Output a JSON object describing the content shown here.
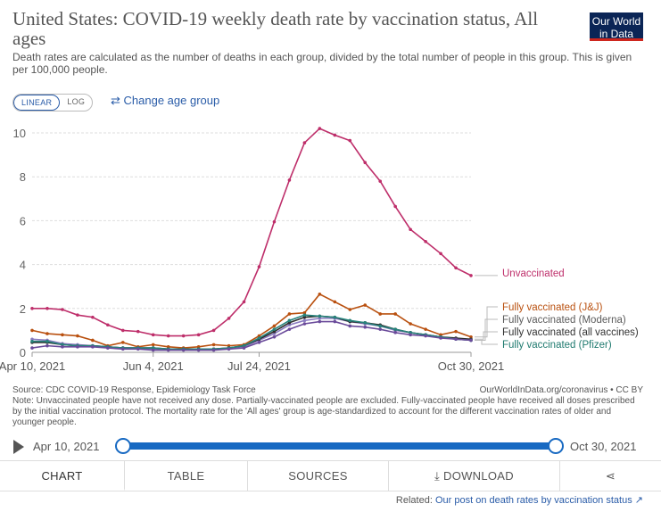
{
  "header": {
    "title": "United States: COVID-19 weekly death rate by vaccination status, All ages",
    "subtitle": "Death rates are calculated as the number of deaths in each group, divided by the total number of people in this group. This is given per 100,000 people.",
    "logo_line1": "Our World",
    "logo_line2": "in Data"
  },
  "controls": {
    "linear_label": "LINEAR",
    "log_label": "LOG",
    "age_icon": "swap-arrows-icon",
    "age_link": "Change age group"
  },
  "chart_data": {
    "type": "line",
    "title": "United States: COVID-19 weekly death rate by vaccination status, All ages",
    "ylabel": "",
    "ylim": [
      0,
      10
    ],
    "yticks": [
      0,
      2,
      4,
      6,
      8,
      10
    ],
    "xticks": [
      {
        "week": 0,
        "label": "Apr 10, 2021"
      },
      {
        "week": 8,
        "label": "Jun 4, 2021"
      },
      {
        "week": 15,
        "label": "Jul 24, 2021"
      },
      {
        "week": 29,
        "label": "Oct 30, 2021"
      }
    ],
    "x_weeks": [
      0,
      1,
      2,
      3,
      4,
      5,
      6,
      7,
      8,
      9,
      10,
      11,
      12,
      13,
      14,
      15,
      16,
      17,
      18,
      19,
      20,
      21,
      22,
      23,
      24,
      25,
      26,
      27,
      28,
      29
    ],
    "series": [
      {
        "name": "Unvaccinated",
        "color": "#be2e6a",
        "values": [
          2.0,
          2.0,
          1.95,
          1.7,
          1.6,
          1.25,
          1.0,
          0.95,
          0.8,
          0.75,
          0.75,
          0.8,
          1.0,
          1.55,
          2.3,
          3.9,
          5.95,
          7.85,
          9.55,
          10.2,
          9.9,
          9.65,
          8.65,
          7.8,
          6.65,
          5.6,
          5.05,
          4.5,
          3.85,
          3.5
        ]
      },
      {
        "name": "Fully vaccinated (J&J)",
        "color": "#b9500f",
        "values": [
          1.0,
          0.85,
          0.8,
          0.75,
          0.55,
          0.3,
          0.45,
          0.25,
          0.35,
          0.25,
          0.2,
          0.25,
          0.35,
          0.3,
          0.35,
          0.75,
          1.2,
          1.75,
          1.8,
          2.65,
          2.3,
          1.95,
          2.15,
          1.75,
          1.75,
          1.3,
          1.05,
          0.8,
          0.95,
          0.7
        ]
      },
      {
        "name": "Fully vaccinated (Moderna)",
        "color": "#8b7cc1",
        "values": [
          0.6,
          0.55,
          0.4,
          0.35,
          0.3,
          0.25,
          0.2,
          0.2,
          0.15,
          0.15,
          0.12,
          0.15,
          0.15,
          0.15,
          0.25,
          0.55,
          0.85,
          1.25,
          1.45,
          1.55,
          1.55,
          1.4,
          1.3,
          1.2,
          1.0,
          0.9,
          0.8,
          0.7,
          0.6,
          0.55
        ]
      },
      {
        "name": "Fully vaccinated (all vaccines)",
        "color": "#2d2d2d",
        "values": [
          0.45,
          0.45,
          0.35,
          0.3,
          0.3,
          0.25,
          0.2,
          0.2,
          0.2,
          0.15,
          0.15,
          0.15,
          0.15,
          0.2,
          0.3,
          0.6,
          0.95,
          1.35,
          1.6,
          1.65,
          1.6,
          1.4,
          1.35,
          1.25,
          1.05,
          0.9,
          0.8,
          0.7,
          0.65,
          0.6
        ]
      },
      {
        "name": "Fully vaccinated (Pfizer)",
        "color": "#27827a",
        "values": [
          0.5,
          0.5,
          0.35,
          0.3,
          0.3,
          0.25,
          0.2,
          0.2,
          0.2,
          0.15,
          0.15,
          0.15,
          0.15,
          0.2,
          0.3,
          0.65,
          1.05,
          1.45,
          1.7,
          1.65,
          1.6,
          1.45,
          1.35,
          1.2,
          1.05,
          0.9,
          0.8,
          0.7,
          0.6,
          0.55
        ]
      },
      {
        "name": "Fully vaccinated (all vaccines) purple line",
        "color": "#6a4a9a",
        "legend": false,
        "values": [
          0.2,
          0.3,
          0.25,
          0.25,
          0.25,
          0.2,
          0.15,
          0.15,
          0.1,
          0.1,
          0.1,
          0.1,
          0.1,
          0.15,
          0.2,
          0.45,
          0.7,
          1.05,
          1.3,
          1.4,
          1.4,
          1.2,
          1.15,
          1.05,
          0.9,
          0.8,
          0.75,
          0.65,
          0.6,
          0.55
        ]
      }
    ],
    "legend_labels": [
      {
        "name": "Unvaccinated",
        "color": "#be2e6a"
      },
      {
        "name": "Fully vaccinated (J&J)",
        "color": "#b9500f"
      },
      {
        "name": "Fully vaccinated (Moderna)",
        "color": "#5b5b5b"
      },
      {
        "name": "Fully vaccinated (all vaccines)",
        "color": "#333333"
      },
      {
        "name": "Fully vaccinated (Pfizer)",
        "color": "#1f7a6f"
      }
    ]
  },
  "footer": {
    "source": "Source: CDC COVID-19 Response, Epidemiology Task Force",
    "reference": "OurWorldInData.org/coronavirus • CC BY",
    "note": "Note: Unvaccinated people have not received any dose. Partially-vaccinated people are excluded. Fully-vaccinated people have received all doses prescribed by the initial vaccination protocol. The mortality rate for the 'All ages' group is age-standardized to account for the different vaccination rates of older and younger people."
  },
  "timeline": {
    "start": "Apr 10, 2021",
    "end": "Oct 30, 2021",
    "play_icon": "play-icon"
  },
  "tabs": [
    {
      "label": "CHART"
    },
    {
      "label": "TABLE"
    },
    {
      "label": "SOURCES"
    },
    {
      "label": "DOWNLOAD",
      "icon": "download-icon"
    },
    {
      "label": "",
      "icon": "share-icon"
    }
  ],
  "related": {
    "prefix": "Related:",
    "link": "Our post on death rates by vaccination status",
    "icon": "external-link-icon"
  }
}
